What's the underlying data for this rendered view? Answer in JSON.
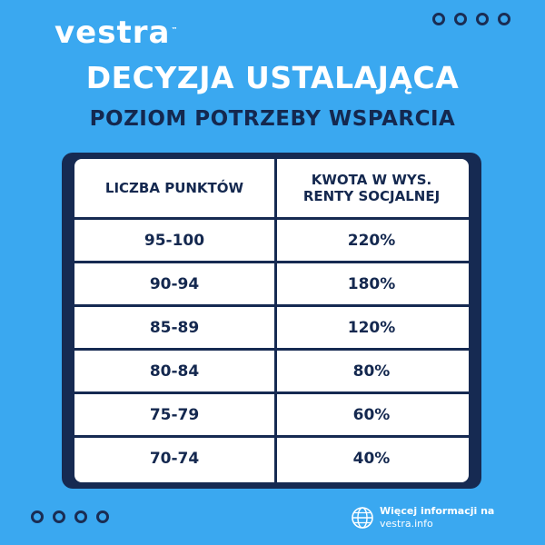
{
  "brand": {
    "logo_text": "vestra",
    "tm": "™"
  },
  "header": {
    "title": "DECYZJA USTALAJĄCA",
    "subtitle": "POZIOM POTRZEBY WSPARCIA"
  },
  "table": {
    "columns": [
      "LICZBA PUNKTÓW",
      "KWOTA W WYS.\nRENTY SOCJALNEJ"
    ],
    "rows": [
      {
        "points": "95-100",
        "amount": "220%"
      },
      {
        "points": "90-94",
        "amount": "180%"
      },
      {
        "points": "85-89",
        "amount": "120%"
      },
      {
        "points": "80-84",
        "amount": "80%"
      },
      {
        "points": "75-79",
        "amount": "60%"
      },
      {
        "points": "70-74",
        "amount": "40%"
      }
    ]
  },
  "footer": {
    "line1": "Więcej informacji na",
    "line2": "vestra.info",
    "icon": "globe-icon"
  },
  "colors": {
    "background": "#3aa8f0",
    "navy": "#14284f",
    "frame": "#162a52",
    "white": "#ffffff"
  }
}
